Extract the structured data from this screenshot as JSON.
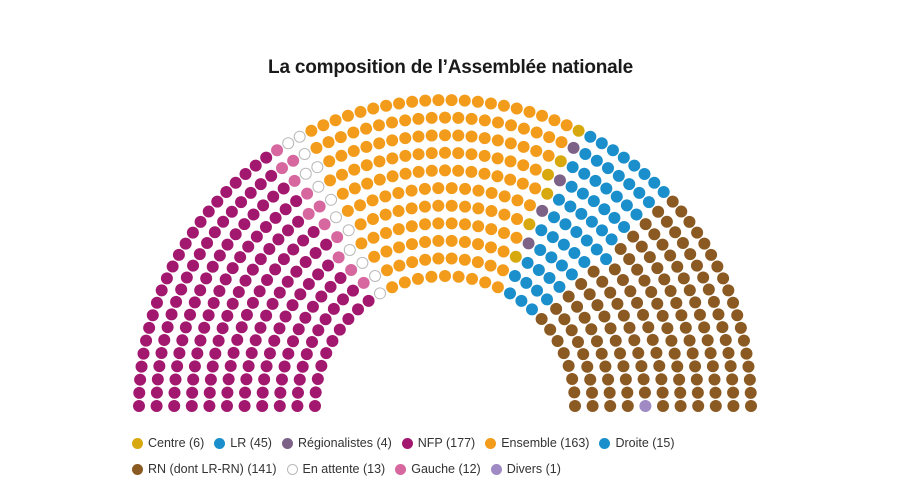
{
  "chart_data": {
    "type": "parliament",
    "title": "La composition de l’Assemblée nationale",
    "total_seats": 577,
    "groups": [
      {
        "name": "NFP",
        "seats": 177,
        "color": "#a3186f",
        "legend": "NFP (177)"
      },
      {
        "name": "Gauche",
        "seats": 12,
        "color": "#d6679f",
        "legend": "Gauche (12)"
      },
      {
        "name": "En attente",
        "seats": 13,
        "color": "#ffffff",
        "legend": "En attente (13)"
      },
      {
        "name": "Ensemble",
        "seats": 163,
        "color": "#f39c1b",
        "legend": "Ensemble (163)"
      },
      {
        "name": "Centre",
        "seats": 6,
        "color": "#d8a90f",
        "legend": "Centre (6)"
      },
      {
        "name": "Régionalistes",
        "seats": 4,
        "color": "#7b6286",
        "legend": "Régionalistes (4)"
      },
      {
        "name": "Droite",
        "seats": 15,
        "color": "#1b8fcb",
        "legend": "Droite (15)"
      },
      {
        "name": "LR",
        "seats": 45,
        "color": "#1b8fcb",
        "legend": "LR (45)"
      },
      {
        "name": "RN (dont LR-RN)",
        "seats": 141,
        "color": "#8b5a22",
        "legend": "RN (dont LR-RN) (141)"
      },
      {
        "name": "Divers",
        "seats": 1,
        "color": "#9f8ac4",
        "legend": "Divers (1)"
      }
    ],
    "legend_order": [
      "Centre",
      "LR",
      "Régionalistes",
      "NFP",
      "Ensemble",
      "Droite",
      "RN (dont LR-RN)",
      "En attente",
      "Gauche",
      "Divers"
    ]
  }
}
